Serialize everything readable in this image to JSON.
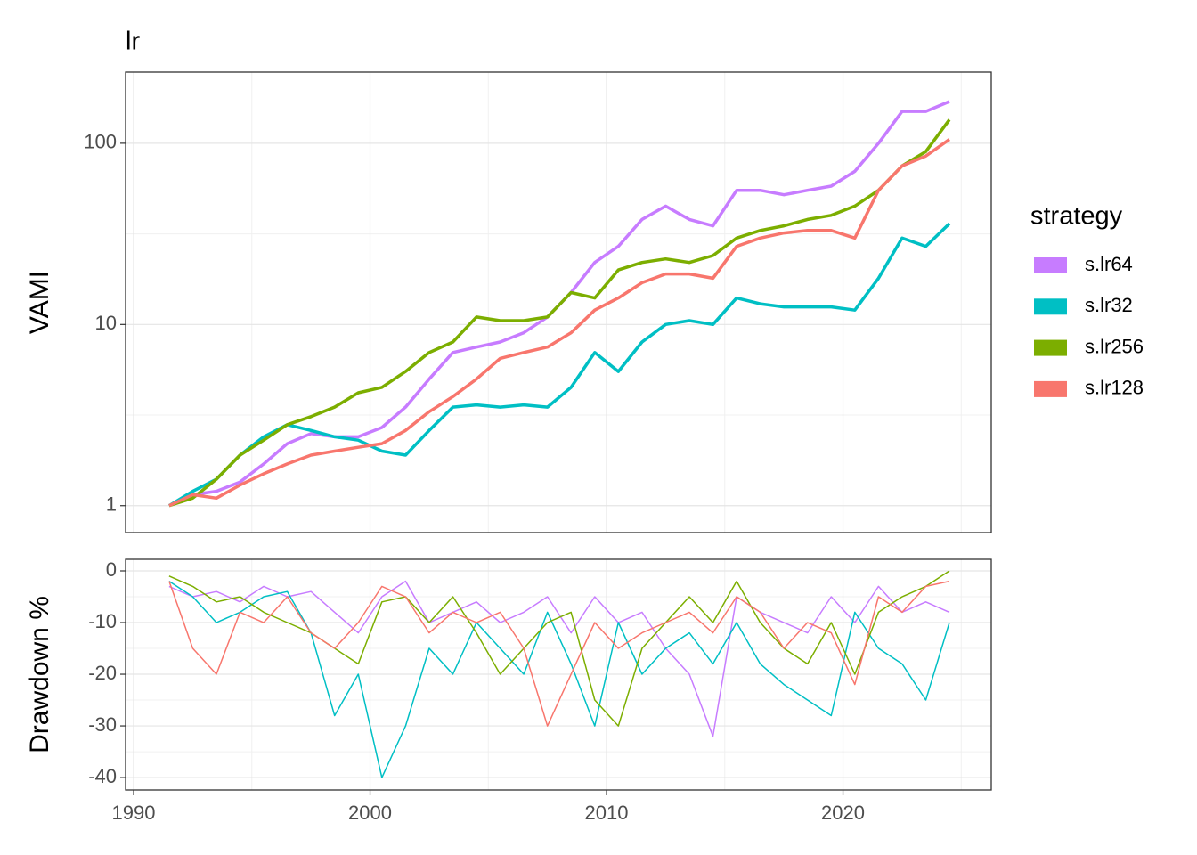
{
  "chart_data": [
    {
      "type": "line",
      "title": "lr",
      "ylabel": "VAMI",
      "log_y": true,
      "grid": true,
      "line_width": 3.5,
      "legend_title": "strategy",
      "legend_position": "right",
      "x": [
        1991.5,
        1992.5,
        1993.5,
        1994.5,
        1995.5,
        1996.5,
        1997.5,
        1998.5,
        1999.5,
        2000.5,
        2001.5,
        2002.5,
        2003.5,
        2004.5,
        2005.5,
        2006.5,
        2007.5,
        2008.5,
        2009.5,
        2010.5,
        2011.5,
        2012.5,
        2013.5,
        2014.5,
        2015.5,
        2016.5,
        2017.5,
        2018.5,
        2019.5,
        2020.5,
        2021.5,
        2022.5,
        2023.5,
        2024.5
      ],
      "xlim": [
        1989.66,
        2026.27
      ],
      "xticks": [
        1990,
        2000,
        2010,
        2020
      ],
      "ylim": [
        0.71,
        247
      ],
      "yticks": [
        1,
        10,
        100
      ],
      "series": [
        {
          "name": "s.lr64",
          "color": "#C77CFF",
          "values": [
            1.0,
            1.15,
            1.2,
            1.35,
            1.7,
            2.2,
            2.5,
            2.4,
            2.4,
            2.7,
            3.5,
            5,
            7,
            7.5,
            8,
            9,
            11,
            15,
            22,
            27,
            38,
            45,
            38,
            35,
            55,
            55,
            52,
            55,
            58,
            70,
            100,
            150,
            150,
            170
          ]
        },
        {
          "name": "s.lr32",
          "color": "#00BFC4",
          "values": [
            1.0,
            1.2,
            1.4,
            1.9,
            2.4,
            2.8,
            2.6,
            2.4,
            2.3,
            2.0,
            1.9,
            2.6,
            3.5,
            3.6,
            3.5,
            3.6,
            3.5,
            4.5,
            7,
            5.5,
            8,
            10,
            10.5,
            10,
            14,
            13,
            12.5,
            12.5,
            12.5,
            12,
            18,
            30,
            27,
            36
          ]
        },
        {
          "name": "s.lr256",
          "color": "#7CAE00",
          "values": [
            1.0,
            1.1,
            1.4,
            1.9,
            2.3,
            2.8,
            3.1,
            3.5,
            4.2,
            4.5,
            5.5,
            7,
            8,
            11,
            10.5,
            10.5,
            11,
            15,
            14,
            20,
            22,
            23,
            22,
            24,
            30,
            33,
            35,
            38,
            40,
            45,
            55,
            75,
            90,
            135
          ]
        },
        {
          "name": "s.lr128",
          "color": "#F8766D",
          "values": [
            1.0,
            1.15,
            1.1,
            1.3,
            1.5,
            1.7,
            1.9,
            2.0,
            2.1,
            2.2,
            2.6,
            3.3,
            4,
            5,
            6.5,
            7,
            7.5,
            9,
            12,
            14,
            17,
            19,
            19,
            18,
            27,
            30,
            32,
            33,
            33,
            30,
            55,
            75,
            85,
            105
          ]
        }
      ]
    },
    {
      "type": "line",
      "ylabel": "Drawdown %",
      "log_y": false,
      "grid": true,
      "line_width": 1.5,
      "x": [
        1991.5,
        1992.5,
        1993.5,
        1994.5,
        1995.5,
        1996.5,
        1997.5,
        1998.5,
        1999.5,
        2000.5,
        2001.5,
        2002.5,
        2003.5,
        2004.5,
        2005.5,
        2006.5,
        2007.5,
        2008.5,
        2009.5,
        2010.5,
        2011.5,
        2012.5,
        2013.5,
        2014.5,
        2015.5,
        2016.5,
        2017.5,
        2018.5,
        2019.5,
        2020.5,
        2021.5,
        2022.5,
        2023.5,
        2024.5
      ],
      "xlim": [
        1989.66,
        2026.27
      ],
      "xticks": [
        1990,
        2000,
        2010,
        2020
      ],
      "ylim": [
        -42.4,
        2.24
      ],
      "yticks": [
        0,
        -10,
        -20,
        -30,
        -40
      ],
      "series": [
        {
          "color": "#C77CFF",
          "values": [
            -3,
            -5,
            -4,
            -6,
            -3,
            -5,
            -4,
            -8,
            -12,
            -5,
            -2,
            -10,
            -8,
            -6,
            -10,
            -8,
            -5,
            -12,
            -5,
            -10,
            -8,
            -15,
            -20,
            -32,
            -5,
            -8,
            -10,
            -12,
            -5,
            -10,
            -3,
            -8,
            -6,
            -8
          ]
        },
        {
          "color": "#00BFC4",
          "values": [
            -2,
            -5,
            -10,
            -8,
            -5,
            -4,
            -12,
            -28,
            -20,
            -40,
            -30,
            -15,
            -20,
            -10,
            -15,
            -20,
            -8,
            -18,
            -30,
            -10,
            -20,
            -15,
            -12,
            -18,
            -10,
            -18,
            -22,
            -25,
            -28,
            -8,
            -15,
            -18,
            -25,
            -10
          ]
        },
        {
          "color": "#7CAE00",
          "values": [
            -1,
            -3,
            -6,
            -5,
            -8,
            -10,
            -12,
            -15,
            -18,
            -6,
            -5,
            -10,
            -5,
            -12,
            -20,
            -15,
            -10,
            -8,
            -25,
            -30,
            -15,
            -10,
            -5,
            -10,
            -2,
            -10,
            -15,
            -18,
            -10,
            -20,
            -8,
            -5,
            -3,
            0
          ]
        },
        {
          "color": "#F8766D",
          "values": [
            -2,
            -15,
            -20,
            -8,
            -10,
            -5,
            -12,
            -15,
            -10,
            -3,
            -5,
            -12,
            -8,
            -10,
            -8,
            -15,
            -30,
            -20,
            -10,
            -15,
            -12,
            -10,
            -8,
            -12,
            -5,
            -8,
            -15,
            -10,
            -12,
            -22,
            -5,
            -8,
            -3,
            -2
          ]
        }
      ]
    }
  ]
}
